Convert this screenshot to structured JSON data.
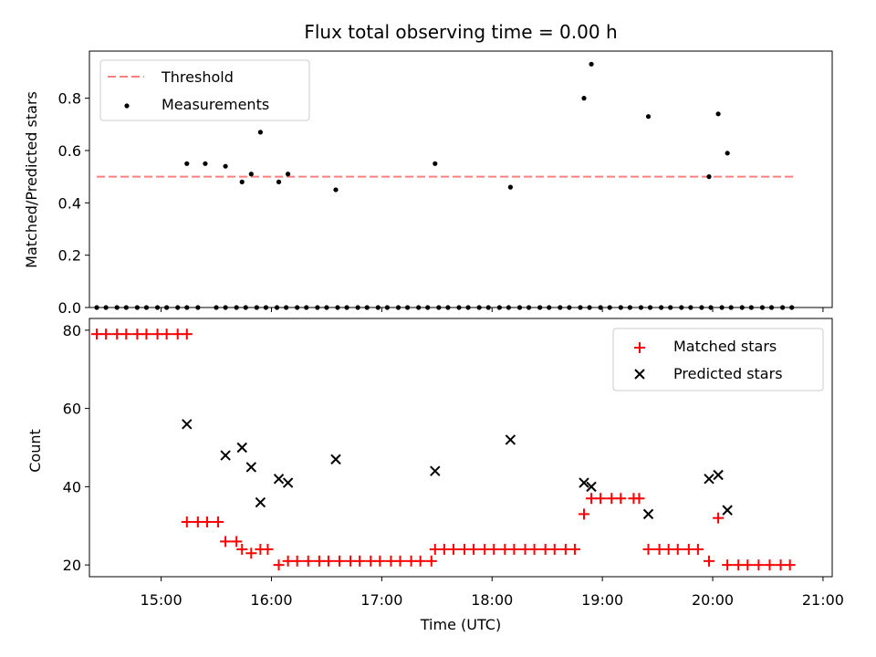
{
  "chart_data": [
    {
      "type": "scatter",
      "title": "Flux total observing time = 0.00 h",
      "xlabel": "",
      "ylabel": "Matched/Predicted stars",
      "xlim": [
        "14:21",
        "21:05"
      ],
      "ylim": [
        0,
        0.98
      ],
      "yticks": [
        0.0,
        0.2,
        0.4,
        0.6,
        0.8
      ],
      "yticklabels": [
        "0.0",
        "0.2",
        "0.4",
        "0.6",
        "0.8"
      ],
      "legend": "top-left",
      "threshold": {
        "name": "Threshold",
        "value": 0.5,
        "x_range": [
          "14:25",
          "20:45"
        ],
        "color": "#ff7f7f",
        "style": "dashed"
      },
      "series": [
        {
          "name": "Measurements",
          "color": "#000000",
          "marker": "dot",
          "x": [
            "14:25",
            "14:30",
            "14:36",
            "14:41",
            "14:47",
            "14:52",
            "14:58",
            "15:03",
            "15:09",
            "15:14",
            "15:20",
            "15:24",
            "15:30",
            "15:35",
            "15:41",
            "15:46",
            "15:52",
            "15:57",
            "16:03",
            "16:08",
            "16:14",
            "16:19",
            "16:25",
            "16:30",
            "16:36",
            "16:41",
            "16:47",
            "16:52",
            "16:58",
            "17:03",
            "17:09",
            "17:14",
            "17:20",
            "17:25",
            "17:31",
            "17:36",
            "17:42",
            "17:47",
            "17:53",
            "17:58",
            "18:04",
            "18:09",
            "18:15",
            "18:20",
            "18:26",
            "18:31",
            "18:37",
            "18:42",
            "18:48",
            "18:53",
            "18:59",
            "19:04",
            "19:10",
            "19:15",
            "19:21",
            "19:26",
            "19:32",
            "19:37",
            "19:43",
            "19:48",
            "19:54",
            "19:59",
            "20:05",
            "20:10",
            "20:16",
            "20:21",
            "20:27",
            "20:32",
            "20:38",
            "20:43",
            "15:14",
            "15:35",
            "15:44",
            "15:49",
            "15:54",
            "16:04",
            "16:09",
            "16:35",
            "17:29",
            "18:10",
            "18:50",
            "18:54",
            "19:25",
            "19:58",
            "20:03",
            "20:08"
          ],
          "y": [
            0,
            0,
            0,
            0,
            0,
            0,
            0,
            0,
            0,
            0,
            0,
            0.55,
            0,
            0,
            0,
            0,
            0,
            0,
            0,
            0,
            0,
            0,
            0,
            0,
            0,
            0,
            0,
            0,
            0,
            0,
            0,
            0,
            0,
            0,
            0,
            0,
            0,
            0,
            0,
            0,
            0,
            0,
            0,
            0,
            0,
            0,
            0,
            0,
            0,
            0,
            0,
            0,
            0,
            0,
            0,
            0,
            0,
            0,
            0,
            0,
            0,
            0,
            0,
            0,
            0,
            0,
            0,
            0,
            0,
            0,
            0.55,
            0.54,
            0.48,
            0.51,
            0.67,
            0.48,
            0.51,
            0.45,
            0.55,
            0.46,
            0.8,
            0.93,
            0.73,
            0.5,
            0.74,
            0.59
          ]
        }
      ]
    },
    {
      "type": "scatter",
      "title": "",
      "xlabel": "Time (UTC)",
      "ylabel": "Count",
      "xlim": [
        "14:21",
        "21:05"
      ],
      "ylim": [
        17,
        83
      ],
      "xticks": [
        "15:00",
        "16:00",
        "17:00",
        "18:00",
        "19:00",
        "20:00",
        "21:00"
      ],
      "xticklabels": [
        "15:00",
        "16:00",
        "17:00",
        "18:00",
        "19:00",
        "20:00",
        "21:00"
      ],
      "yticks": [
        20,
        40,
        60,
        80
      ],
      "yticklabels": [
        "20",
        "40",
        "60",
        "80"
      ],
      "legend": "top-right",
      "series": [
        {
          "name": "Matched stars",
          "color": "#ff0000",
          "marker": "plus",
          "x": [
            "14:25",
            "14:30",
            "14:36",
            "14:41",
            "14:47",
            "14:52",
            "14:58",
            "15:03",
            "15:09",
            "15:14",
            "15:14",
            "15:20",
            "15:25",
            "15:31",
            "15:35",
            "15:41",
            "15:44",
            "15:49",
            "15:54",
            "15:58",
            "16:04",
            "16:09",
            "16:14",
            "16:20",
            "16:26",
            "16:31",
            "16:37",
            "16:43",
            "16:48",
            "16:54",
            "16:59",
            "17:05",
            "17:10",
            "17:16",
            "17:21",
            "17:27",
            "17:29",
            "17:34",
            "17:39",
            "17:45",
            "17:50",
            "17:56",
            "18:01",
            "18:07",
            "18:12",
            "18:18",
            "18:23",
            "18:29",
            "18:34",
            "18:40",
            "18:45",
            "18:50",
            "18:54",
            "18:59",
            "19:05",
            "19:10",
            "19:17",
            "19:20",
            "19:25",
            "19:31",
            "19:36",
            "19:41",
            "19:47",
            "19:52",
            "19:58",
            "20:03",
            "20:08",
            "20:14",
            "20:19",
            "20:25",
            "20:31",
            "20:37",
            "20:42"
          ],
          "y": [
            79,
            79,
            79,
            79,
            79,
            79,
            79,
            79,
            79,
            79,
            31,
            31,
            31,
            31,
            26,
            26,
            24,
            23,
            24,
            24,
            20,
            21,
            21,
            21,
            21,
            21,
            21,
            21,
            21,
            21,
            21,
            21,
            21,
            21,
            21,
            21,
            24,
            24,
            24,
            24,
            24,
            24,
            24,
            24,
            24,
            24,
            24,
            24,
            24,
            24,
            24,
            33,
            37,
            37,
            37,
            37,
            37,
            37,
            24,
            24,
            24,
            24,
            24,
            24,
            21,
            32,
            20,
            20,
            20,
            20,
            20,
            20,
            20
          ]
        },
        {
          "name": "Predicted stars",
          "color": "#000000",
          "marker": "x",
          "x": [
            "15:14",
            "15:35",
            "15:44",
            "15:49",
            "15:54",
            "16:04",
            "16:09",
            "16:35",
            "17:29",
            "18:10",
            "18:50",
            "18:54",
            "19:25",
            "19:58",
            "20:03",
            "20:08"
          ],
          "y": [
            56,
            48,
            50,
            45,
            36,
            42,
            41,
            47,
            44,
            52,
            41,
            40,
            33,
            42,
            43,
            34
          ]
        }
      ]
    }
  ]
}
